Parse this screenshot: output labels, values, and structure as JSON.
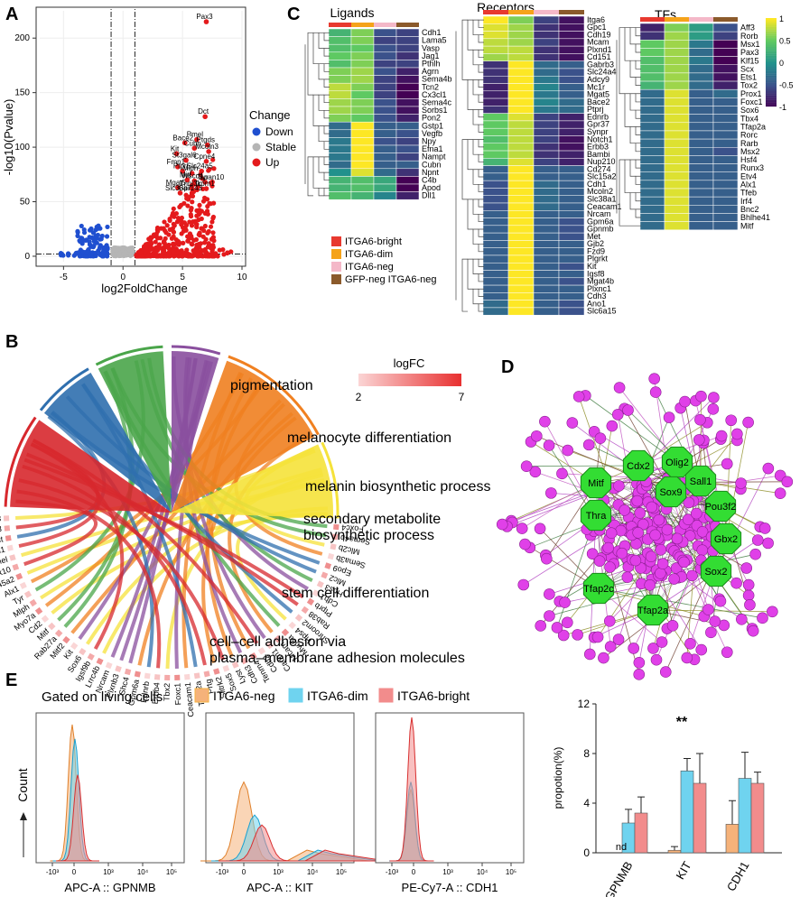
{
  "panel_labels": {
    "a": "A",
    "b": "B",
    "c": "C",
    "d": "D",
    "e": "E"
  },
  "colors": {
    "down": "#1f4fd0",
    "stable": "#b5b5b5",
    "up": "#e41a1c",
    "bright": "#e8392f",
    "dim": "#f5a31a",
    "neg": "#f4b8c8",
    "gfpneg": "#8b5a2b",
    "node_tf": "#33dd33",
    "node_gene": "#e040e8",
    "hist_neg": "#f5b27a",
    "hist_dim": "#6fd3ef",
    "hist_bright": "#f28c8c"
  },
  "chart_data": [
    {
      "id": "A",
      "type": "scatter",
      "xlabel": "log2FoldChange",
      "ylabel": "-log10(Pvalue)",
      "xlim": [
        -7,
        10
      ],
      "ylim": [
        -5,
        225
      ],
      "xticks": [
        "-5",
        "0",
        "5",
        "10"
      ],
      "yticks": [
        "0",
        "50",
        "100",
        "150",
        "200"
      ],
      "legend_title": "Change",
      "legend": [
        {
          "name": "Down",
          "key": "down"
        },
        {
          "name": "Stable",
          "key": "stable"
        },
        {
          "name": "Up",
          "key": "up"
        }
      ],
      "threshold_x": [
        -1,
        1
      ],
      "labeled_points": [
        {
          "gene": "Pax3",
          "x": 7.0,
          "y": 215
        },
        {
          "gene": "Dct",
          "x": 6.9,
          "y": 128
        },
        {
          "gene": "Pmel",
          "x": 6.2,
          "y": 107
        },
        {
          "gene": "Ptgds",
          "x": 7.1,
          "y": 102
        },
        {
          "gene": "Bace2",
          "x": 5.2,
          "y": 104
        },
        {
          "gene": "Cubn",
          "x": 6.0,
          "y": 99
        },
        {
          "gene": "Mcoln3",
          "x": 7.2,
          "y": 96
        },
        {
          "gene": "Kit",
          "x": 4.5,
          "y": 94
        },
        {
          "gene": "St3gal6",
          "x": 5.3,
          "y": 88
        },
        {
          "gene": "Cpne4",
          "x": 7.0,
          "y": 87
        },
        {
          "gene": "Fmn1",
          "x": 4.6,
          "y": 82
        },
        {
          "gene": "Ptprj",
          "x": 5.0,
          "y": 78
        },
        {
          "gene": "Mlph",
          "x": 5.8,
          "y": 76
        },
        {
          "gene": "Slc24a5",
          "x": 6.6,
          "y": 78
        },
        {
          "gene": "Mitf",
          "x": 5.4,
          "y": 70
        },
        {
          "gene": "Wscd1",
          "x": 6.0,
          "y": 69
        },
        {
          "gene": "Tyr",
          "x": 6.9,
          "y": 68
        },
        {
          "gene": "Tspan10",
          "x": 7.5,
          "y": 68
        },
        {
          "gene": "Mgat5",
          "x": 4.6,
          "y": 63
        },
        {
          "gene": "Tnni3k",
          "x": 5.8,
          "y": 62
        },
        {
          "gene": "Trpm1",
          "x": 7.0,
          "y": 62
        },
        {
          "gene": "Slc38a7",
          "x": 4.8,
          "y": 58
        },
        {
          "gene": "Gpr143",
          "x": 5.8,
          "y": 58
        }
      ]
    },
    {
      "id": "B",
      "type": "chord",
      "legend_title": "logFC",
      "legend_min": "2",
      "legend_max": "7",
      "terms": [
        {
          "name": "pigmentation",
          "color": "#d7282d"
        },
        {
          "name": "melanocyte differentiation",
          "color": "#2f6fae"
        },
        {
          "name": "melanin biosynthetic process",
          "color": "#4aa54a"
        },
        {
          "name": "secondary metabolite biosynthetic process",
          "color": "#8a4f9e"
        },
        {
          "name": "stem cell differentiation",
          "color": "#f08020"
        },
        {
          "name": "cell–cell adhesion via plasma–membrane adhesion molecules",
          "color": "#f5e23a"
        }
      ],
      "genes": [
        "Pax3",
        "Gpr143",
        "Dct",
        "Trpm1",
        "Pmel",
        "Sox10",
        "Slc45a2",
        "Alx1",
        "Tyr",
        "Mlph",
        "Myo7a",
        "Cd2",
        "Mitf",
        "Rab27a",
        "Mitf2",
        "Kit",
        "Sox6",
        "Igsf9b",
        "Lrrc4b",
        "Nrcam",
        "Plxnb3",
        "Shc4",
        "Gpm6a",
        "Ednrb",
        "Erbb4",
        "Tbx2",
        "Foxc1",
        "Ceacam1",
        "Tfap2a",
        "Prtg",
        "Slitrk2",
        "Sox5",
        "Lyst",
        "Cdh3",
        "Tenm4",
        "Cdh2",
        "Cadm1",
        "Mcam",
        "Myo5a",
        "Hps4",
        "Shroom2",
        "Rab38",
        "Ptprb",
        "Cdh1",
        "Hps3",
        "Mlc2",
        "Epo9",
        "Sema3b",
        "Mlc2b",
        "Sema4b",
        "Foxc4"
      ]
    },
    {
      "id": "C",
      "type": "heatmap",
      "groups": [
        "ITGA6-bright",
        "ITGA6-dim",
        "ITGA6-neg",
        "GFP-neg ITGA6-neg"
      ],
      "colorbar_ticks": [
        "1",
        "0.5",
        "0",
        "-0.5",
        "-1"
      ],
      "sections": [
        {
          "title": "Ligands",
          "genes": [
            "Cdh1",
            "Lama5",
            "Vasp",
            "Jag1",
            "Pthlh",
            "Agrn",
            "Sema4b",
            "Tcn2",
            "Cx3cl1",
            "Sema4c",
            "Sorbs1",
            "Pon2",
            "Gstp1",
            "Vegfb",
            "Npy",
            "Efna1",
            "Nampt",
            "Cubn",
            "Npnt",
            "C4b",
            "Apod",
            "Dll1"
          ],
          "values": [
            [
              0.3,
              0.6,
              -0.5,
              -0.6
            ],
            [
              0.4,
              0.6,
              -0.6,
              -0.6
            ],
            [
              0.4,
              0.5,
              -0.5,
              -0.6
            ],
            [
              0.5,
              0.6,
              -0.5,
              -0.7
            ],
            [
              0.4,
              0.6,
              -0.6,
              -0.6
            ],
            [
              0.6,
              0.7,
              -0.5,
              -0.8
            ],
            [
              0.6,
              0.7,
              -0.6,
              -0.9
            ],
            [
              0.8,
              0.6,
              -0.6,
              -1.0
            ],
            [
              0.8,
              0.5,
              -0.6,
              -1.0
            ],
            [
              0.7,
              0.6,
              -0.5,
              -0.9
            ],
            [
              0.7,
              0.6,
              -0.5,
              -0.9
            ],
            [
              0.6,
              0.5,
              -0.5,
              -0.8
            ],
            [
              -0.3,
              1.0,
              -0.4,
              -0.4
            ],
            [
              -0.3,
              1.0,
              -0.4,
              -0.5
            ],
            [
              -0.2,
              1.0,
              -0.5,
              -0.6
            ],
            [
              -0.2,
              1.0,
              -0.4,
              -0.5
            ],
            [
              -0.2,
              1.0,
              -0.4,
              -0.6
            ],
            [
              -0.3,
              1.0,
              -0.4,
              -0.4
            ],
            [
              0.0,
              0.9,
              -0.3,
              -0.7
            ],
            [
              0.3,
              0.4,
              0.2,
              -1.0
            ],
            [
              0.3,
              0.4,
              0.2,
              -1.0
            ],
            [
              0.4,
              0.3,
              -0.1,
              -0.8
            ]
          ]
        },
        {
          "title": "Receptors",
          "genes": [
            "Itga6",
            "Gpc1",
            "Cdh19",
            "Mcam",
            "Plxnd1",
            "Cd151",
            "Gabrb3",
            "Slc24a4",
            "Adcy9",
            "Mc1r",
            "Mgat5",
            "Bace2",
            "Ptprj",
            "Ednrb",
            "Gpr37",
            "Synpr",
            "Notch1",
            "Erbb3",
            "Bambi",
            "Nup210",
            "Cd274",
            "Slc15a2",
            "Cdh1",
            "Mcoln2",
            "Slc38a1",
            "Ceacam1",
            "Nrcam",
            "Gpm6a",
            "Gpnmb",
            "Met",
            "Gjb2",
            "Fzd9",
            "Plgrkt",
            "Kit",
            "Igsf8",
            "Mgat4b",
            "Plxnc1",
            "Cdh3",
            "Ano1",
            "Slc6a15"
          ],
          "values": [
            [
              1.0,
              0.6,
              -0.6,
              -0.9
            ],
            [
              0.9,
              0.7,
              -0.7,
              -0.9
            ],
            [
              0.9,
              0.7,
              -0.7,
              -0.9
            ],
            [
              0.8,
              0.7,
              -0.6,
              -0.9
            ],
            [
              0.8,
              0.8,
              -0.7,
              -0.9
            ],
            [
              0.7,
              0.8,
              -0.7,
              -0.9
            ],
            [
              -0.7,
              1.0,
              -0.3,
              -0.4
            ],
            [
              -0.7,
              1.0,
              -0.3,
              -0.5
            ],
            [
              -0.7,
              1.0,
              -0.2,
              -0.5
            ],
            [
              -0.8,
              1.0,
              -0.1,
              -0.4
            ],
            [
              -0.8,
              1.0,
              -0.2,
              -0.4
            ],
            [
              -0.8,
              1.0,
              -0.1,
              -0.3
            ],
            [
              -0.7,
              1.0,
              -0.2,
              -0.3
            ],
            [
              0.5,
              0.9,
              -0.6,
              -0.8
            ],
            [
              0.5,
              0.8,
              -0.6,
              -0.8
            ],
            [
              0.5,
              0.8,
              -0.6,
              -0.8
            ],
            [
              0.4,
              0.8,
              -0.6,
              -0.9
            ],
            [
              0.5,
              0.8,
              -0.7,
              -0.9
            ],
            [
              0.5,
              0.8,
              -0.7,
              -0.8
            ],
            [
              0.3,
              0.9,
              -0.6,
              -0.8
            ],
            [
              -0.4,
              1.0,
              -0.4,
              -0.4
            ],
            [
              -0.4,
              1.0,
              -0.4,
              -0.4
            ],
            [
              -0.5,
              1.0,
              -0.3,
              -0.4
            ],
            [
              -0.5,
              1.0,
              -0.3,
              -0.4
            ],
            [
              -0.5,
              1.0,
              -0.3,
              -0.4
            ],
            [
              -0.5,
              1.0,
              -0.3,
              -0.4
            ],
            [
              -0.4,
              1.0,
              -0.4,
              -0.4
            ],
            [
              -0.4,
              1.0,
              -0.4,
              -0.5
            ],
            [
              -0.4,
              1.0,
              -0.4,
              -0.5
            ],
            [
              -0.4,
              1.0,
              -0.4,
              -0.5
            ],
            [
              -0.4,
              1.0,
              -0.4,
              -0.4
            ],
            [
              -0.4,
              1.0,
              -0.4,
              -0.4
            ],
            [
              -0.4,
              1.0,
              -0.4,
              -0.4
            ],
            [
              -0.4,
              1.0,
              -0.4,
              -0.5
            ],
            [
              -0.4,
              1.0,
              -0.4,
              -0.4
            ],
            [
              -0.4,
              1.0,
              -0.4,
              -0.5
            ],
            [
              -0.4,
              1.0,
              -0.4,
              -0.4
            ],
            [
              -0.4,
              1.0,
              -0.4,
              -0.4
            ],
            [
              -0.3,
              1.0,
              -0.4,
              -0.5
            ],
            [
              -0.3,
              1.0,
              -0.4,
              -0.5
            ]
          ]
        },
        {
          "title": "TFs",
          "genes": [
            "Aff3",
            "Rorb",
            "Msx1",
            "Pax3",
            "Klf15",
            "Scx",
            "Ets1",
            "Tox2",
            "Prox1",
            "Foxc1",
            "Sox6",
            "Tbx4",
            "Tfap2a",
            "Rorc",
            "Rarb",
            "Msx2",
            "Hsf4",
            "Runx3",
            "Etv4",
            "Alx1",
            "Tfeb",
            "Irf4",
            "Bnc2",
            "Bhlhe41",
            "Mitf"
          ],
          "values": [
            [
              -0.8,
              0.6,
              0.1,
              -0.5
            ],
            [
              -0.7,
              0.7,
              0.1,
              -0.6
            ],
            [
              0.5,
              0.7,
              -0.2,
              -1.0
            ],
            [
              0.5,
              0.7,
              -0.3,
              -1.0
            ],
            [
              0.4,
              0.7,
              -0.2,
              -1.0
            ],
            [
              0.4,
              0.7,
              -0.3,
              -0.9
            ],
            [
              0.4,
              0.7,
              -0.3,
              -0.9
            ],
            [
              0.3,
              0.7,
              -0.3,
              -0.8
            ],
            [
              -0.3,
              0.9,
              -0.4,
              -0.3
            ],
            [
              -0.3,
              0.9,
              -0.4,
              -0.4
            ],
            [
              -0.3,
              0.9,
              -0.4,
              -0.4
            ],
            [
              -0.3,
              0.9,
              -0.4,
              -0.4
            ],
            [
              -0.3,
              0.9,
              -0.4,
              -0.4
            ],
            [
              -0.3,
              0.9,
              -0.4,
              -0.4
            ],
            [
              -0.3,
              0.9,
              -0.4,
              -0.4
            ],
            [
              -0.3,
              0.9,
              -0.4,
              -0.5
            ],
            [
              -0.3,
              0.9,
              -0.4,
              -0.4
            ],
            [
              -0.3,
              0.9,
              -0.4,
              -0.4
            ],
            [
              -0.3,
              0.9,
              -0.4,
              -0.4
            ],
            [
              -0.3,
              0.9,
              -0.4,
              -0.4
            ],
            [
              -0.3,
              0.9,
              -0.4,
              -0.4
            ],
            [
              -0.3,
              0.9,
              -0.4,
              -0.4
            ],
            [
              -0.3,
              0.9,
              -0.4,
              -0.4
            ],
            [
              -0.3,
              0.9,
              -0.4,
              -0.4
            ],
            [
              -0.3,
              0.9,
              -0.4,
              -0.4
            ]
          ]
        }
      ]
    },
    {
      "id": "D",
      "type": "network",
      "hubs": [
        "Olig2",
        "Cdx2",
        "Mitf",
        "Sox9",
        "Sall1",
        "Pou3f2",
        "Thra",
        "Gbx2",
        "Sox2",
        "Tfap2c",
        "Tfap2a"
      ]
    },
    {
      "id": "E1",
      "type": "histogram",
      "title": "Gated on living cells",
      "legend": [
        {
          "name": "ITGA6-neg",
          "key": "hist_neg"
        },
        {
          "name": "ITGA6-dim",
          "key": "hist_dim"
        },
        {
          "name": "ITGA6-bright",
          "key": "hist_bright"
        }
      ],
      "ylabel": "Count",
      "xticks": [
        "-10³",
        "0",
        "10³",
        "10⁴",
        "10⁵"
      ],
      "panels": [
        {
          "xlabel": "APC-A :: GPNMB"
        },
        {
          "xlabel": "APC-A :: KIT"
        },
        {
          "xlabel": "PE-Cy7-A :: CDH1"
        }
      ]
    },
    {
      "id": "E2",
      "type": "bar",
      "ylabel": "propotion(%)",
      "ylim": [
        0,
        12
      ],
      "yticks": [
        "0",
        "4",
        "8",
        "12"
      ],
      "categories": [
        "GPNMB",
        "KIT",
        "CDH1"
      ],
      "series": [
        {
          "name": "ITGA6-neg",
          "key": "hist_neg",
          "values": [
            0,
            0.2,
            2.3
          ],
          "errors": [
            0,
            0.3,
            1.9
          ]
        },
        {
          "name": "ITGA6-dim",
          "key": "hist_dim",
          "values": [
            2.4,
            6.6,
            6.0
          ],
          "errors": [
            1.1,
            1.0,
            2.1
          ]
        },
        {
          "name": "ITGA6-bright",
          "key": "hist_bright",
          "values": [
            3.2,
            5.6,
            5.6
          ],
          "errors": [
            1.3,
            2.4,
            0.9
          ]
        }
      ],
      "annotations": {
        "nd": "nd",
        "sig": "**"
      }
    }
  ]
}
